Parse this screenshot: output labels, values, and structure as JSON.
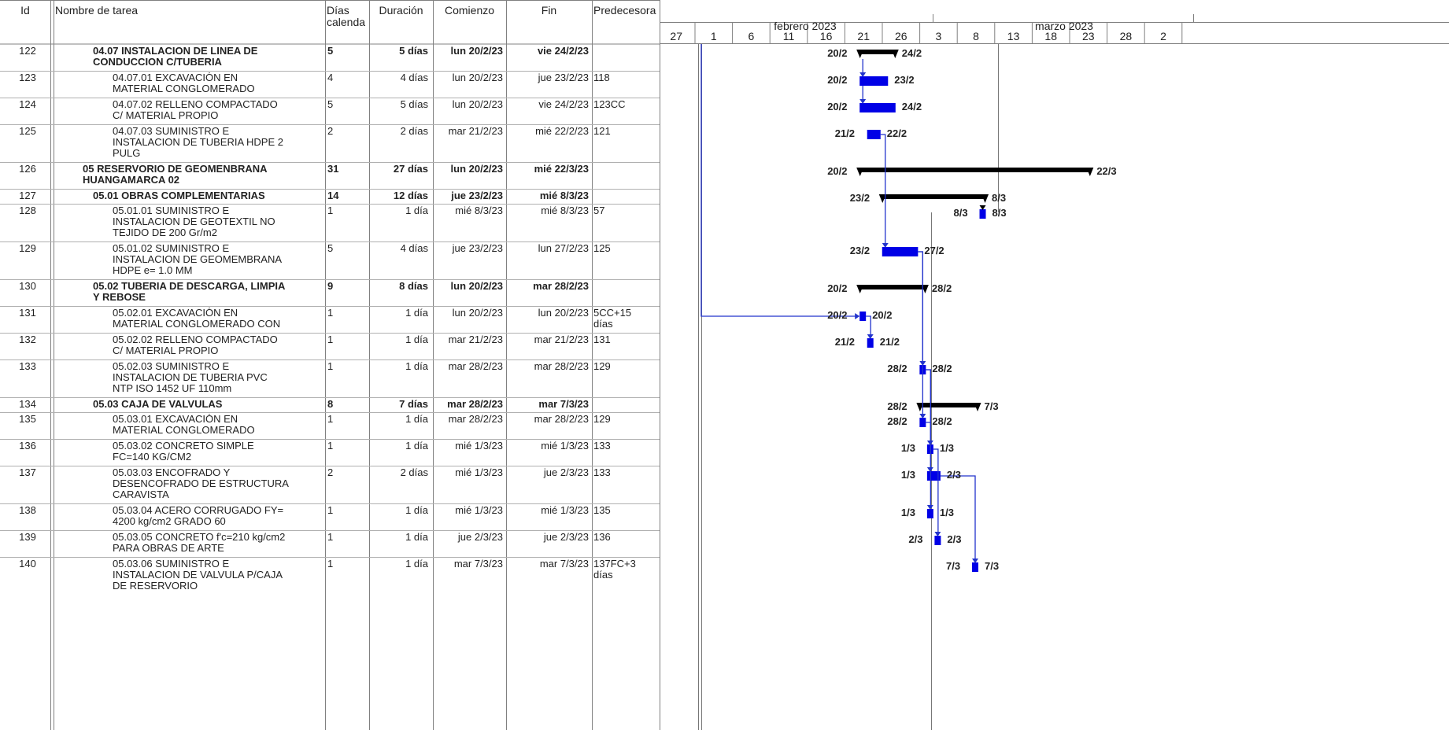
{
  "headers": {
    "id": "Id",
    "name": "Nombre de tarea",
    "dias": "Días calenda",
    "duracion": "Duración",
    "comienzo": "Comienzo",
    "fin": "Fin",
    "pred": "Predecesora"
  },
  "timescale": {
    "months": [
      {
        "label": "febrero 2023"
      },
      {
        "label": "marzo 2023"
      }
    ],
    "ticks": [
      "27",
      "1",
      "6",
      "11",
      "16",
      "21",
      "26",
      "3",
      "8",
      "13",
      "18",
      "23",
      "28",
      "2"
    ]
  },
  "colors": {
    "task_bar": "#0000e6",
    "summary_bar": "#000000",
    "link_line": "#2233cc",
    "grid_line": "#808080"
  },
  "tasks": [
    {
      "id": "122",
      "name": [
        "04.07 INSTALACION DE LINEA DE",
        "CONDUCCION C/TUBERIA"
      ],
      "dias": "5",
      "dur": "5 días",
      "start": "lun 20/2/23",
      "end": "vie 24/2/23",
      "pred": "",
      "summary": true,
      "indent": 1,
      "lblStart": "20/2",
      "lblEnd": "24/2"
    },
    {
      "id": "123",
      "name": [
        "04.07.01  EXCAVACIÓN EN",
        "MATERIAL CONGLOMERADO"
      ],
      "dias": "4",
      "dur": "4 días",
      "start": "lun 20/2/23",
      "end": "jue 23/2/23",
      "pred": "118",
      "summary": false,
      "indent": 2,
      "lblStart": "20/2",
      "lblEnd": "23/2"
    },
    {
      "id": "124",
      "name": [
        "04.07.02  RELLENO COMPACTADO",
        "C/ MATERIAL PROPIO"
      ],
      "dias": "5",
      "dur": "5 días",
      "start": "lun 20/2/23",
      "end": "vie 24/2/23",
      "pred": "123CC",
      "summary": false,
      "indent": 2,
      "lblStart": "20/2",
      "lblEnd": "24/2"
    },
    {
      "id": "125",
      "name": [
        "04.07.03  SUMINISTRO E",
        "INSTALACION DE TUBERIA HDPE  2",
        "PULG"
      ],
      "dias": "2",
      "dur": "2 días",
      "start": "mar 21/2/23",
      "end": "mié 22/2/23",
      "pred": "121",
      "summary": false,
      "indent": 2,
      "lblStart": "21/2",
      "lblEnd": "22/2"
    },
    {
      "id": "126",
      "name": [
        "05 RESERVORIO DE GEOMENBRANA",
        "HUANGAMARCA 02"
      ],
      "dias": "31",
      "dur": "27 días",
      "start": "lun 20/2/23",
      "end": "mié 22/3/23",
      "pred": "",
      "summary": true,
      "indent": 0,
      "lblStart": "20/2",
      "lblEnd": "22/3"
    },
    {
      "id": "127",
      "name": [
        "05.01 OBRAS COMPLEMENTARIAS"
      ],
      "dias": "14",
      "dur": "12 días",
      "start": "jue 23/2/23",
      "end": "mié 8/3/23",
      "pred": "",
      "summary": true,
      "indent": 1,
      "lblStart": "23/2",
      "lblEnd": "8/3"
    },
    {
      "id": "128",
      "name": [
        "05.01.01  SUMINISTRO E",
        "INSTALACION DE GEOTEXTIL NO",
        "TEJIDO DE 200 Gr/m2"
      ],
      "dias": "1",
      "dur": "1 día",
      "start": "mié 8/3/23",
      "end": "mié 8/3/23",
      "pred": "57",
      "summary": false,
      "indent": 2,
      "lblStart": "8/3",
      "lblEnd": "8/3"
    },
    {
      "id": "129",
      "name": [
        "05.01.02  SUMINISTRO E",
        "INSTALACION DE GEOMEMBRANA",
        "HDPE e= 1.0 MM"
      ],
      "dias": "5",
      "dur": "4 días",
      "start": "jue 23/2/23",
      "end": "lun 27/2/23",
      "pred": "125",
      "summary": false,
      "indent": 2,
      "lblStart": "23/2",
      "lblEnd": "27/2"
    },
    {
      "id": "130",
      "name": [
        "05.02 TUBERIA DE DESCARGA, LIMPIA",
        "Y REBOSE"
      ],
      "dias": "9",
      "dur": "8 días",
      "start": "lun 20/2/23",
      "end": "mar 28/2/23",
      "pred": "",
      "summary": true,
      "indent": 1,
      "lblStart": "20/2",
      "lblEnd": "28/2"
    },
    {
      "id": "131",
      "name": [
        "05.02.01  EXCAVACIÓN EN",
        "MATERIAL CONGLOMERADO CON"
      ],
      "dias": "1",
      "dur": "1 día",
      "start": "lun 20/2/23",
      "end": "lun 20/2/23",
      "pred": "5CC+15 días",
      "summary": false,
      "indent": 2,
      "lblStart": "20/2",
      "lblEnd": "20/2"
    },
    {
      "id": "132",
      "name": [
        "05.02.02  RELLENO COMPACTADO",
        "C/ MATERIAL PROPIO"
      ],
      "dias": "1",
      "dur": "1 día",
      "start": "mar 21/2/23",
      "end": "mar 21/2/23",
      "pred": "131",
      "summary": false,
      "indent": 2,
      "lblStart": "21/2",
      "lblEnd": "21/2"
    },
    {
      "id": "133",
      "name": [
        "05.02.03  SUMINISTRO E",
        "INSTALACION DE TUBERIA PVC",
        "NTP ISO 1452 UF 110mm"
      ],
      "dias": "1",
      "dur": "1 día",
      "start": "mar 28/2/23",
      "end": "mar 28/2/23",
      "pred": "129",
      "summary": false,
      "indent": 2,
      "lblStart": "28/2",
      "lblEnd": "28/2"
    },
    {
      "id": "134",
      "name": [
        "05.03 CAJA DE VALVULAS"
      ],
      "dias": "8",
      "dur": "7 días",
      "start": "mar 28/2/23",
      "end": "mar 7/3/23",
      "pred": "",
      "summary": true,
      "indent": 1,
      "lblStart": "28/2",
      "lblEnd": "7/3"
    },
    {
      "id": "135",
      "name": [
        "05.03.01  EXCAVACIÓN EN",
        "MATERIAL CONGLOMERADO"
      ],
      "dias": "1",
      "dur": "1 día",
      "start": "mar 28/2/23",
      "end": "mar 28/2/23",
      "pred": "129",
      "summary": false,
      "indent": 2,
      "lblStart": "28/2",
      "lblEnd": "28/2"
    },
    {
      "id": "136",
      "name": [
        "05.03.02  CONCRETO SIMPLE",
        "FC=140 KG/CM2"
      ],
      "dias": "1",
      "dur": "1 día",
      "start": "mié 1/3/23",
      "end": "mié 1/3/23",
      "pred": "133",
      "summary": false,
      "indent": 2,
      "lblStart": "1/3",
      "lblEnd": "1/3"
    },
    {
      "id": "137",
      "name": [
        "05.03.03  ENCOFRADO Y",
        "DESENCOFRADO DE ESTRUCTURA",
        "CARAVISTA"
      ],
      "dias": "2",
      "dur": "2 días",
      "start": "mié 1/3/23",
      "end": "jue 2/3/23",
      "pred": "133",
      "summary": false,
      "indent": 2,
      "lblStart": "1/3",
      "lblEnd": "2/3"
    },
    {
      "id": "138",
      "name": [
        "05.03.04  ACERO CORRUGADO FY=",
        "4200 kg/cm2 GRADO 60"
      ],
      "dias": "1",
      "dur": "1 día",
      "start": "mié 1/3/23",
      "end": "mié 1/3/23",
      "pred": "135",
      "summary": false,
      "indent": 2,
      "lblStart": "1/3",
      "lblEnd": "1/3"
    },
    {
      "id": "139",
      "name": [
        "05.03.05  CONCRETO f'c=210 kg/cm2",
        "PARA OBRAS DE ARTE"
      ],
      "dias": "1",
      "dur": "1 día",
      "start": "jue 2/3/23",
      "end": "jue 2/3/23",
      "pred": "136",
      "summary": false,
      "indent": 2,
      "lblStart": "2/3",
      "lblEnd": "2/3"
    },
    {
      "id": "140",
      "name": [
        "05.03.06  SUMINISTRO E",
        "INSTALACION DE VALVULA P/CAJA",
        "DE RESERVORIO"
      ],
      "dias": "1",
      "dur": "1 día",
      "start": "mar 7/3/23",
      "end": "mar 7/3/23",
      "pred": "137FC+3 días",
      "summary": false,
      "indent": 2,
      "lblStart": "7/3",
      "lblEnd": "7/3"
    }
  ]
}
